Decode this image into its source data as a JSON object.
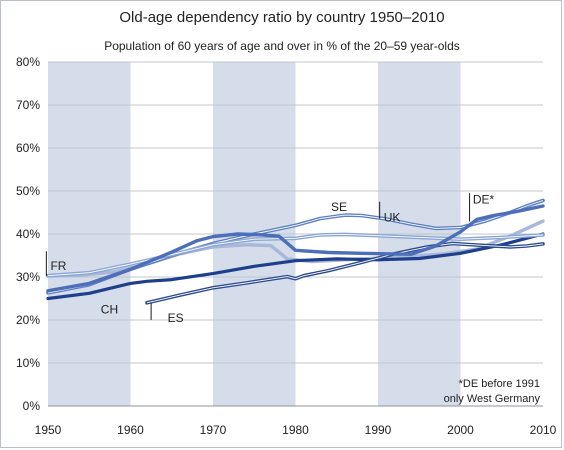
{
  "chart_data": {
    "type": "line",
    "title": "Old-age dependency ratio by country 1950–2010",
    "subtitle": "Population of 60 years of age and over in % of the 20–59 year-olds",
    "xlabel": "",
    "ylabel": "",
    "xlim": [
      1950,
      2010
    ],
    "ylim": [
      0,
      80
    ],
    "x_ticks": [
      "1950",
      "1960",
      "1970",
      "1980",
      "1990",
      "2000",
      "2010"
    ],
    "y_ticks": [
      "0%",
      "10%",
      "20%",
      "30%",
      "40%",
      "50%",
      "60%",
      "70%",
      "80%"
    ],
    "shaded_decades": [
      [
        1950,
        1960
      ],
      [
        1970,
        1980
      ],
      [
        1990,
        2000
      ]
    ],
    "grid": "horizontal",
    "footnote_lines": [
      "*DE before 1991",
      "only West Germany"
    ],
    "series": [
      {
        "name": "FR",
        "color": "#a8b8d8",
        "style": "solid",
        "points": [
          [
            1950,
            30.2
          ],
          [
            1954,
            30.4
          ],
          [
            1958,
            31.2
          ],
          [
            1962,
            33.0
          ],
          [
            1966,
            35.4
          ],
          [
            1970,
            37.0
          ],
          [
            1974,
            37.5
          ],
          [
            1977,
            37.3
          ],
          [
            1979,
            34.2
          ],
          [
            1982,
            33.6
          ],
          [
            1986,
            34.0
          ],
          [
            1990,
            34.4
          ],
          [
            1994,
            34.8
          ],
          [
            1998,
            35.4
          ],
          [
            2002,
            36.5
          ],
          [
            2006,
            39.5
          ],
          [
            2010,
            43.0
          ]
        ]
      },
      {
        "name": "CH",
        "color": "#1e3f8c",
        "style": "solid",
        "points": [
          [
            1950,
            25.0
          ],
          [
            1955,
            26.2
          ],
          [
            1960,
            28.5
          ],
          [
            1962,
            29.0
          ],
          [
            1965,
            29.4
          ],
          [
            1970,
            30.8
          ],
          [
            1975,
            32.5
          ],
          [
            1980,
            33.8
          ],
          [
            1985,
            34.2
          ],
          [
            1990,
            34.0
          ],
          [
            1995,
            34.3
          ],
          [
            2000,
            35.5
          ],
          [
            2005,
            37.5
          ],
          [
            2010,
            40.0
          ]
        ]
      },
      {
        "name": "ES",
        "color": "#2b4a8e",
        "style": "double",
        "points": [
          [
            1962,
            24.0
          ],
          [
            1966,
            25.8
          ],
          [
            1970,
            27.5
          ],
          [
            1974,
            28.6
          ],
          [
            1976,
            29.2
          ],
          [
            1979,
            30.1
          ],
          [
            1980,
            29.6
          ],
          [
            1981,
            30.3
          ],
          [
            1984,
            31.5
          ],
          [
            1988,
            33.4
          ],
          [
            1992,
            35.4
          ],
          [
            1996,
            37.0
          ],
          [
            1999,
            37.8
          ],
          [
            2003,
            37.3
          ],
          [
            2006,
            37.0
          ],
          [
            2008,
            37.2
          ],
          [
            2010,
            37.7
          ]
        ]
      },
      {
        "name": "SE",
        "color": "#5b7fc4",
        "style": "double",
        "points": [
          [
            1950,
            26.3
          ],
          [
            1955,
            28.2
          ],
          [
            1960,
            31.8
          ],
          [
            1965,
            35.0
          ],
          [
            1970,
            37.8
          ],
          [
            1975,
            40.0
          ],
          [
            1980,
            42.0
          ],
          [
            1983,
            43.6
          ],
          [
            1986,
            44.4
          ],
          [
            1988,
            44.3
          ],
          [
            1991,
            43.5
          ],
          [
            1994,
            42.3
          ],
          [
            1997,
            41.3
          ],
          [
            2000,
            41.5
          ],
          [
            2003,
            43.0
          ],
          [
            2006,
            45.0
          ],
          [
            2008,
            46.5
          ],
          [
            2010,
            47.8
          ]
        ]
      },
      {
        "name": "UK",
        "color": "#8aa5d6",
        "style": "double",
        "points": [
          [
            1950,
            30.3
          ],
          [
            1955,
            31.0
          ],
          [
            1960,
            33.0
          ],
          [
            1965,
            35.2
          ],
          [
            1970,
            37.5
          ],
          [
            1975,
            38.8
          ],
          [
            1980,
            39.0
          ],
          [
            1983,
            39.8
          ],
          [
            1986,
            39.9
          ],
          [
            1990,
            39.6
          ],
          [
            1995,
            39.2
          ],
          [
            2000,
            38.8
          ],
          [
            2005,
            39.2
          ],
          [
            2010,
            39.8
          ]
        ]
      },
      {
        "name": "DE*",
        "color": "#4d6eb8",
        "style": "solid",
        "points": [
          [
            1950,
            26.8
          ],
          [
            1955,
            28.5
          ],
          [
            1960,
            31.8
          ],
          [
            1965,
            35.8
          ],
          [
            1968,
            38.4
          ],
          [
            1970,
            39.4
          ],
          [
            1973,
            40.0
          ],
          [
            1976,
            39.8
          ],
          [
            1978,
            39.5
          ],
          [
            1980,
            36.2
          ],
          [
            1984,
            35.7
          ],
          [
            1988,
            35.5
          ],
          [
            1991,
            35.4
          ],
          [
            1994,
            35.3
          ],
          [
            1997,
            37.2
          ],
          [
            2000,
            40.5
          ],
          [
            2002,
            43.4
          ],
          [
            2004,
            44.3
          ],
          [
            2007,
            45.3
          ],
          [
            2010,
            46.5
          ]
        ]
      }
    ],
    "series_labels": [
      {
        "text": "FR",
        "x": 1950.3,
        "y": 31.6,
        "leader": [
          [
            1949.8,
            36.0
          ],
          [
            1949.8,
            30.2
          ]
        ]
      },
      {
        "text": "CH",
        "x": 1956.4,
        "y": 21.5
      },
      {
        "text": "ES",
        "x": 1964.5,
        "y": 19.5,
        "leader": [
          [
            1962.5,
            20.0
          ],
          [
            1962.5,
            24.0
          ]
        ]
      },
      {
        "text": "SE",
        "x": 1984.3,
        "y": 45.4
      },
      {
        "text": "UK",
        "x": 1990.7,
        "y": 42.9,
        "leader": [
          [
            1990.2,
            47.5
          ],
          [
            1990.2,
            43.6
          ]
        ]
      },
      {
        "text": "DE*",
        "x": 2001.5,
        "y": 47.1,
        "leader": [
          [
            2001.1,
            49.5
          ],
          [
            2001.1,
            42.9
          ]
        ]
      }
    ]
  }
}
